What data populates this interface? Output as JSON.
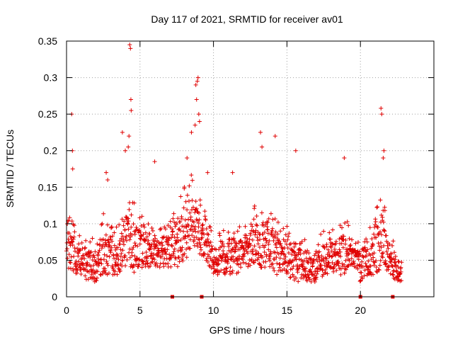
{
  "chart_data": {
    "type": "scatter",
    "title": "Day 117 of 2021, SRMTID for receiver av01",
    "xlabel": "GPS time / hours",
    "ylabel": "SRMTID / TECUs",
    "xlim": [
      0,
      25
    ],
    "ylim": [
      0,
      0.35
    ],
    "x_ticks": [
      0,
      5,
      10,
      15,
      20
    ],
    "x_tick_labels": [
      "0",
      "5",
      "10",
      "15",
      "20"
    ],
    "y_ticks": [
      0,
      0.05,
      0.1,
      0.15,
      0.2,
      0.25,
      0.3,
      0.35
    ],
    "y_tick_labels": [
      "0",
      "0.05",
      "0.1",
      "0.15",
      "0.2",
      "0.25",
      "0.3",
      "0.35"
    ],
    "grid": true,
    "marker": "+",
    "series_color": "#e00000",
    "data_gap_markers_x": [
      7.2,
      9.2,
      20.0,
      22.2
    ],
    "envelope": {
      "description": "approximate distribution read from plot: x hours vs typical low/high SRMTID",
      "x": [
        0.0,
        0.5,
        1.0,
        1.5,
        2.0,
        2.5,
        3.0,
        3.5,
        4.0,
        4.5,
        5.0,
        5.5,
        6.0,
        6.5,
        7.0,
        7.5,
        8.0,
        8.5,
        9.0,
        9.5,
        10.0,
        10.5,
        11.0,
        11.5,
        12.0,
        12.5,
        13.0,
        13.5,
        14.0,
        14.5,
        15.0,
        15.5,
        16.0,
        16.5,
        17.0,
        17.5,
        18.0,
        18.5,
        19.0,
        19.5,
        20.0,
        20.5,
        21.0,
        21.5,
        22.0,
        22.5,
        22.8
      ],
      "low": [
        0.04,
        0.03,
        0.03,
        0.02,
        0.02,
        0.03,
        0.03,
        0.03,
        0.04,
        0.03,
        0.04,
        0.04,
        0.04,
        0.04,
        0.04,
        0.04,
        0.05,
        0.06,
        0.06,
        0.05,
        0.03,
        0.03,
        0.03,
        0.03,
        0.04,
        0.04,
        0.04,
        0.04,
        0.03,
        0.03,
        0.03,
        0.02,
        0.02,
        0.02,
        0.02,
        0.03,
        0.03,
        0.03,
        0.03,
        0.04,
        0.02,
        0.03,
        0.03,
        0.04,
        0.03,
        0.02,
        0.02
      ],
      "high": [
        0.12,
        0.1,
        0.08,
        0.08,
        0.08,
        0.12,
        0.1,
        0.1,
        0.14,
        0.15,
        0.12,
        0.1,
        0.1,
        0.1,
        0.1,
        0.14,
        0.16,
        0.17,
        0.16,
        0.12,
        0.08,
        0.09,
        0.1,
        0.1,
        0.1,
        0.12,
        0.14,
        0.14,
        0.12,
        0.1,
        0.1,
        0.1,
        0.08,
        0.08,
        0.08,
        0.09,
        0.09,
        0.1,
        0.11,
        0.08,
        0.08,
        0.1,
        0.12,
        0.14,
        0.09,
        0.07,
        0.05
      ]
    },
    "spikes": [
      {
        "x": 0.35,
        "y": 0.25
      },
      {
        "x": 0.4,
        "y": 0.2
      },
      {
        "x": 0.42,
        "y": 0.175
      },
      {
        "x": 2.7,
        "y": 0.17
      },
      {
        "x": 2.8,
        "y": 0.16
      },
      {
        "x": 3.8,
        "y": 0.225
      },
      {
        "x": 4.0,
        "y": 0.2
      },
      {
        "x": 4.3,
        "y": 0.345
      },
      {
        "x": 4.35,
        "y": 0.34
      },
      {
        "x": 4.38,
        "y": 0.27
      },
      {
        "x": 4.4,
        "y": 0.255
      },
      {
        "x": 4.25,
        "y": 0.22
      },
      {
        "x": 4.2,
        "y": 0.205
      },
      {
        "x": 6.0,
        "y": 0.185
      },
      {
        "x": 8.2,
        "y": 0.19
      },
      {
        "x": 8.5,
        "y": 0.225
      },
      {
        "x": 8.8,
        "y": 0.29
      },
      {
        "x": 8.85,
        "y": 0.27
      },
      {
        "x": 8.9,
        "y": 0.295
      },
      {
        "x": 8.95,
        "y": 0.3
      },
      {
        "x": 9.0,
        "y": 0.25
      },
      {
        "x": 9.05,
        "y": 0.24
      },
      {
        "x": 8.75,
        "y": 0.235
      },
      {
        "x": 9.6,
        "y": 0.17
      },
      {
        "x": 11.3,
        "y": 0.17
      },
      {
        "x": 13.2,
        "y": 0.225
      },
      {
        "x": 13.3,
        "y": 0.205
      },
      {
        "x": 14.2,
        "y": 0.22
      },
      {
        "x": 15.6,
        "y": 0.2
      },
      {
        "x": 18.9,
        "y": 0.19
      },
      {
        "x": 21.4,
        "y": 0.258
      },
      {
        "x": 21.45,
        "y": 0.25
      },
      {
        "x": 21.6,
        "y": 0.2
      },
      {
        "x": 21.55,
        "y": 0.19
      }
    ],
    "data_end_x": 22.8
  }
}
